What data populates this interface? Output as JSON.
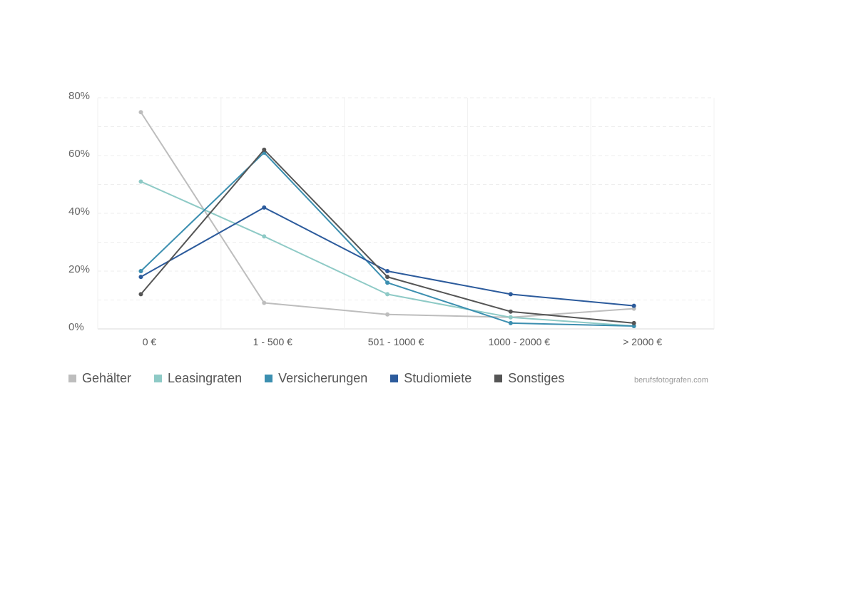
{
  "chart_data": {
    "type": "line",
    "categories": [
      "0 €",
      "1 - 500 €",
      "501 - 1000 €",
      "1000 - 2000 €",
      "> 2000 €"
    ],
    "y_ticks": [
      "0%",
      "20%",
      "40%",
      "60%",
      "80%"
    ],
    "ylim": [
      0,
      80
    ],
    "y_unit": "%",
    "grid": true,
    "legend_position": "bottom-left",
    "series": [
      {
        "name": "Gehälter",
        "color": "#bdbdbd",
        "values": [
          75,
          9,
          5,
          4,
          7
        ]
      },
      {
        "name": "Leasingraten",
        "color": "#8ecac6",
        "values": [
          51,
          32,
          12,
          4,
          1
        ]
      },
      {
        "name": "Versicherungen",
        "color": "#3c8fb0",
        "values": [
          20,
          61,
          16,
          2,
          1
        ]
      },
      {
        "name": "Studiomiete",
        "color": "#2c5b9c",
        "values": [
          18,
          42,
          20,
          12,
          8
        ]
      },
      {
        "name": "Sonstiges",
        "color": "#555555",
        "values": [
          12,
          62,
          18,
          6,
          2
        ]
      }
    ]
  },
  "source_text": "berufsfotografen.com"
}
